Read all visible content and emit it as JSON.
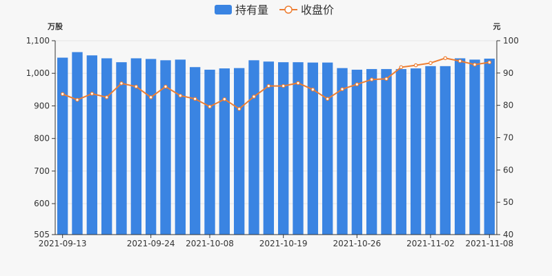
{
  "chart_data": {
    "type": "bar+line",
    "legend": {
      "position": "top-center"
    },
    "series": [
      {
        "name": "持有量",
        "type": "bar",
        "axis": "left",
        "color": "#3a84e2",
        "values": [
          1048,
          1065,
          1055,
          1046,
          1034,
          1046,
          1044,
          1040,
          1042,
          1019,
          1011,
          1015,
          1016,
          1040,
          1036,
          1034,
          1034,
          1033,
          1033,
          1016,
          1011,
          1013,
          1013,
          1013,
          1015,
          1022,
          1022,
          1046,
          1042,
          1045
        ]
      },
      {
        "name": "收盘价",
        "type": "line",
        "axis": "right",
        "color": "#ed7d31",
        "values": [
          83.5,
          81.7,
          83.6,
          82.5,
          86.8,
          85.8,
          82.5,
          85.8,
          83,
          82,
          79.6,
          81.9,
          78.9,
          82.7,
          86,
          86,
          86.9,
          84.9,
          82,
          85,
          86.5,
          88,
          88.2,
          91.8,
          92.4,
          93.1,
          94.6,
          93.7,
          92.6,
          93.3
        ]
      }
    ],
    "x_ticks": [
      {
        "index": 0,
        "label": "2021-09-13"
      },
      {
        "index": 6,
        "label": "2021-09-24"
      },
      {
        "index": 10,
        "label": "2021-10-08"
      },
      {
        "index": 15,
        "label": "2021-10-19"
      },
      {
        "index": 20,
        "label": "2021-10-26"
      },
      {
        "index": 25,
        "label": "2021-11-02"
      },
      {
        "index": 29,
        "label": "2021-11-08"
      }
    ],
    "y_left": {
      "unit": "万股",
      "min": 505,
      "max": 1100,
      "ticks": [
        "505",
        "600",
        "700",
        "800",
        "900",
        "1,000",
        "1,100"
      ],
      "tick_values": [
        505,
        600,
        700,
        800,
        900,
        1000,
        1100
      ]
    },
    "y_right": {
      "unit": "元",
      "min": 40,
      "max": 100,
      "ticks": [
        "40",
        "50",
        "60",
        "70",
        "80",
        "90",
        "100"
      ],
      "tick_values": [
        40,
        50,
        60,
        70,
        80,
        90,
        100
      ]
    }
  }
}
